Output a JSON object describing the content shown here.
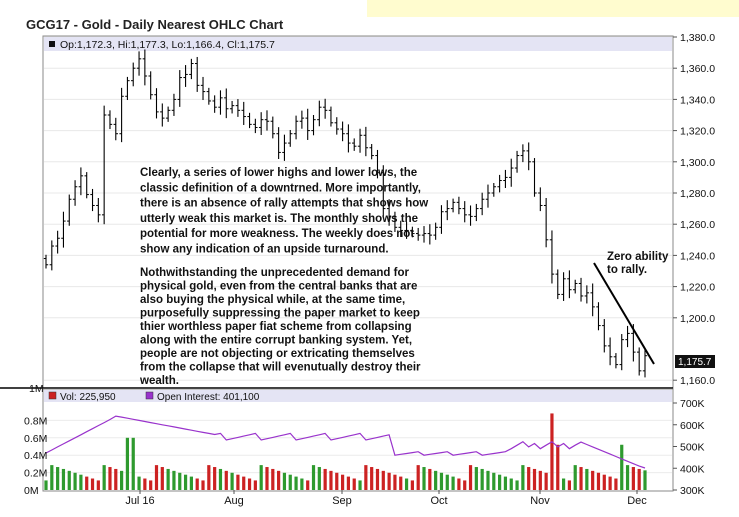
{
  "header": {
    "title": "GCG17 - Gold - Daily Nearest OHLC Chart"
  },
  "price_panel": {
    "ohlc_label": "Op:1,172.3, Hi:1,177.3, Lo:1,166.4, Cl:1,175.7",
    "last_price": "1,175.7",
    "y_ticks": [
      "1,380.0",
      "1,360.0",
      "1,340.0",
      "1,320.0",
      "1,300.0",
      "1,280.0",
      "1,260.0",
      "1,240.0",
      "1,220.0",
      "1,200.0",
      "1,160.0"
    ],
    "commentary_1": [
      "Clearly, a series of lower highs and lower lows, the",
      "classic definition of a downtrned.  More importantly,",
      "there is an absence of rally attempts that shows how",
      "utterly weak this market is.  The monthly shows the",
      "potential for more weakness.  The weekly does not",
      "show any indication of an upside turnaround."
    ],
    "commentary_2": [
      "Nothwithstanding the unprecedented demand for",
      "physical gold, even from the central banks that are",
      "also buying the physical while, at the same time,",
      "purposefully suppressing the paper market to keep",
      "thier worthless paper fiat scheme from collapsing",
      "along with the entire corrupt banking system.  Yet,",
      "people are not objecting or extricating themselves",
      "from the collapse that will evenutually  destroy their",
      "wealth."
    ],
    "annotation": [
      "Zero ability",
      "to rally."
    ]
  },
  "volume_panel": {
    "vol_label": "Vol: 225,950",
    "oi_label": "Open Interest: 401,100",
    "left_ticks": [
      "1M",
      "0.8M",
      "0.6M",
      "0.4M",
      "0.2M",
      "0M"
    ],
    "right_ticks": [
      "700K",
      "600K",
      "500K",
      "400K",
      "300K"
    ]
  },
  "x_axis": {
    "labels": [
      "Jul 16",
      "Aug",
      "Sep",
      "Oct",
      "Nov",
      "Dec"
    ]
  },
  "colors": {
    "up_bar": "#2e9a2e",
    "down_bar": "#cc2222",
    "open_interest": "#9933cc",
    "price_bar": "#000000",
    "legend_bg": "#e4e4f4"
  },
  "chart_data": [
    {
      "type": "ohlc",
      "title": "GCG17 - Gold - Daily Nearest OHLC Chart",
      "series": [
        {
          "name": "GCG17",
          "close_values": [
            1234,
            1246,
            1251,
            1262,
            1276,
            1284,
            1291,
            1279,
            1272,
            1266,
            1330,
            1324,
            1318,
            1342,
            1352,
            1360,
            1366,
            1355,
            1343,
            1332,
            1328,
            1333,
            1340,
            1354,
            1356,
            1363,
            1349,
            1345,
            1339,
            1335,
            1341,
            1334,
            1336,
            1333,
            1329,
            1324,
            1322,
            1327,
            1326,
            1318,
            1306,
            1312,
            1318,
            1326,
            1328,
            1320,
            1327,
            1335,
            1333,
            1325,
            1321,
            1318,
            1312,
            1310,
            1317,
            1309,
            1304,
            1293,
            1270,
            1265,
            1258,
            1256,
            1256,
            1254,
            1253,
            1254,
            1253,
            1258,
            1268,
            1270,
            1274,
            1270,
            1266,
            1265,
            1270,
            1276,
            1280,
            1284,
            1288,
            1290,
            1296,
            1304,
            1307,
            1300,
            1280,
            1272,
            1250,
            1228,
            1215,
            1225,
            1218,
            1222,
            1214,
            1216,
            1207,
            1195,
            1182,
            1175,
            1170,
            1186,
            1190,
            1178,
            1166,
            1175.7
          ]
        }
      ],
      "ylim": [
        1155,
        1380
      ],
      "last": {
        "open": 1172.3,
        "high": 1177.3,
        "low": 1166.4,
        "close": 1175.7
      },
      "x_labels": [
        "Jul 16",
        "Aug",
        "Sep",
        "Oct",
        "Nov",
        "Dec"
      ]
    },
    {
      "type": "bar",
      "series": [
        {
          "name": "Vol",
          "values": [
            225950
          ],
          "ylim": [
            0,
            1000000
          ]
        },
        {
          "name": "Open Interest",
          "values": [
            401100
          ],
          "ylim": [
            300000,
            700000
          ]
        }
      ]
    }
  ]
}
